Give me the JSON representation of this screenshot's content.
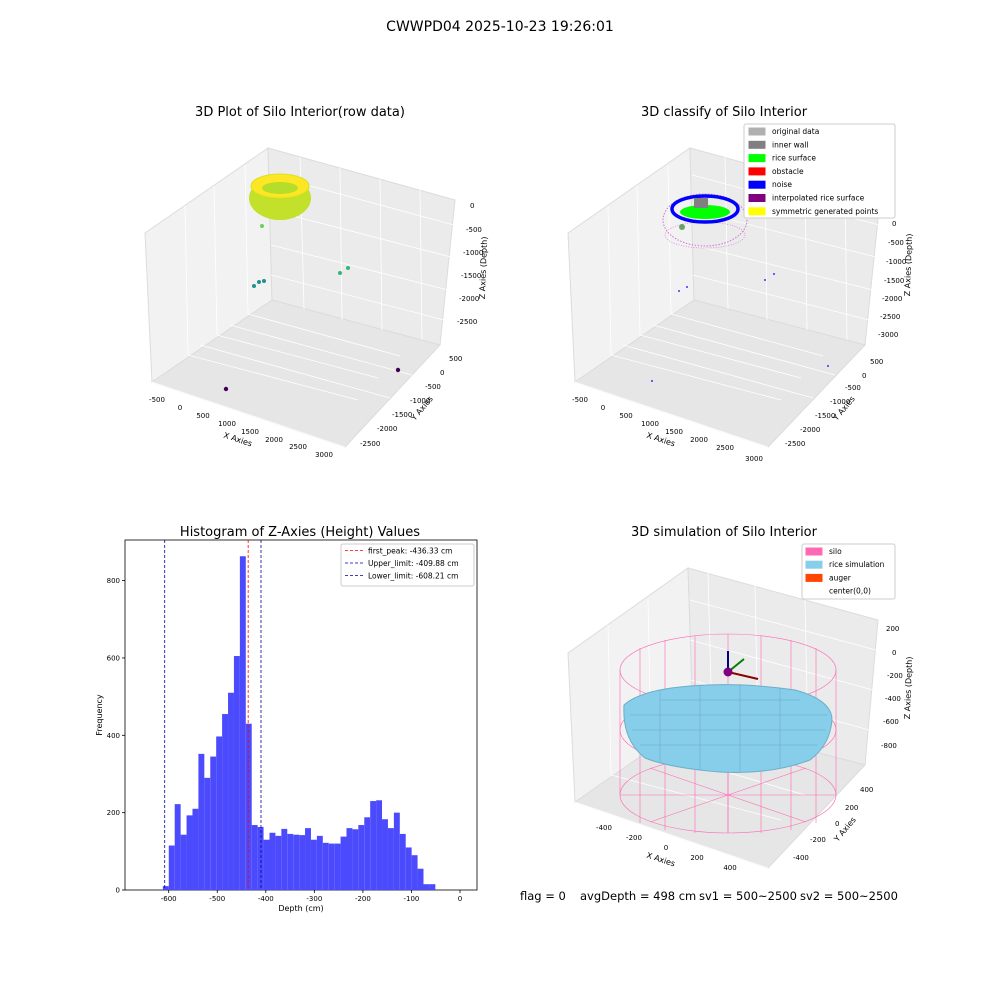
{
  "figure": {
    "suptitle": "CWWPD04 2025-10-23 19:26:01",
    "footer": {
      "flag": "flag = 0",
      "avg_depth": "avgDepth = 498 cm",
      "sv1": "sv1 = 500~2500",
      "sv2": "sv2 = 500~2500"
    }
  },
  "chart_data": [
    {
      "type": "scatter",
      "projection": "3d",
      "title": "3D Plot of Silo Interior(row data)",
      "xlabel": "X Axies",
      "ylabel": "Y Axies",
      "zlabel": "Z Axies (Depth)",
      "x_ticks": [
        "-500",
        "0",
        "500",
        "1000",
        "1500",
        "2000",
        "2500",
        "3000"
      ],
      "y_ticks": [
        "500",
        "0",
        "-500",
        "-1000",
        "-1500",
        "-2000",
        "-2500"
      ],
      "z_ticks": [
        "0",
        "-500",
        "-1000",
        "-1500",
        "-2000",
        "-2500"
      ],
      "colormap": [
        "#440154",
        "#3b528b",
        "#21918c",
        "#5ec962",
        "#fde725"
      ],
      "grid": true
    },
    {
      "type": "scatter",
      "projection": "3d",
      "title": "3D classify of Silo Interior",
      "xlabel": "X Axies",
      "ylabel": "Y Axies",
      "zlabel": "Z Axies (Depth)",
      "x_ticks": [
        "-500",
        "0",
        "500",
        "1000",
        "1500",
        "2000",
        "2500",
        "3000"
      ],
      "y_ticks": [
        "500",
        "0",
        "-500",
        "-1000",
        "-1500",
        "-2000",
        "-2500"
      ],
      "z_ticks": [
        "0",
        "-500",
        "-1000",
        "-1500",
        "-2000",
        "-2500",
        "-3000"
      ],
      "legend": [
        {
          "name": "original data",
          "color": "#b0b0b0"
        },
        {
          "name": "inner wall",
          "color": "#808080"
        },
        {
          "name": "rice surface",
          "color": "#00ff00"
        },
        {
          "name": "obstacle",
          "color": "#ff0000"
        },
        {
          "name": "noise",
          "color": "#0000ff"
        },
        {
          "name": "interpolated rice surface",
          "color": "#800080"
        },
        {
          "name": "symmetric generated points",
          "color": "#ffff00"
        }
      ],
      "legend_loc": "upper right",
      "grid": true
    },
    {
      "type": "bar",
      "title": "Histogram of Z-Axies (Height) Values",
      "xlabel": "Depth (cm)",
      "ylabel": "Frequency",
      "xlim": [
        -690,
        35
      ],
      "ylim": [
        0,
        905
      ],
      "x_ticks": [
        -600,
        -500,
        -400,
        -300,
        -200,
        -100,
        0
      ],
      "y_ticks": [
        0,
        200,
        400,
        600,
        800
      ],
      "bin_width": 12.2,
      "bin_start": -612,
      "values": [
        10,
        115,
        222,
        143,
        193,
        210,
        352,
        290,
        345,
        397,
        455,
        510,
        605,
        863,
        430,
        168,
        163,
        130,
        148,
        140,
        158,
        145,
        143,
        142,
        160,
        130,
        140,
        122,
        120,
        120,
        138,
        160,
        157,
        168,
        188,
        230,
        232,
        183,
        160,
        200,
        145,
        110,
        90,
        55,
        15,
        15
      ],
      "bar_color": "#4b4bfd",
      "vlines": [
        {
          "name": "first_peak: -436.33 cm",
          "x": -436.33,
          "color": "#ff0000"
        },
        {
          "name": "Upper_limit: -409.88 cm",
          "x": -409.88,
          "color": "#0000aa"
        },
        {
          "name": "Lower_limit: -608.21 cm",
          "x": -608.21,
          "color": "#0000aa"
        }
      ],
      "legend_loc": "upper right",
      "grid": false
    },
    {
      "type": "surface",
      "projection": "3d",
      "title": "3D simulation of Silo Interior",
      "xlabel": "X Axies",
      "ylabel": "Y Axies",
      "zlabel": "Z Axies (Depth)",
      "x_ticks": [
        "-400",
        "-200",
        "0",
        "200",
        "400"
      ],
      "y_ticks": [
        "400",
        "200",
        "0",
        "-200",
        "-400"
      ],
      "z_ticks": [
        "200",
        "0",
        "-200",
        "-400",
        "-600",
        "-800"
      ],
      "legend": [
        {
          "name": "silo",
          "color": "#ff69b4"
        },
        {
          "name": "rice simulation",
          "color": "#87ceeb"
        },
        {
          "name": "auger",
          "color": "#ff4500"
        },
        {
          "name": "center(0,0)",
          "color": "#ffffff"
        }
      ],
      "legend_loc": "upper right",
      "grid": true
    }
  ]
}
